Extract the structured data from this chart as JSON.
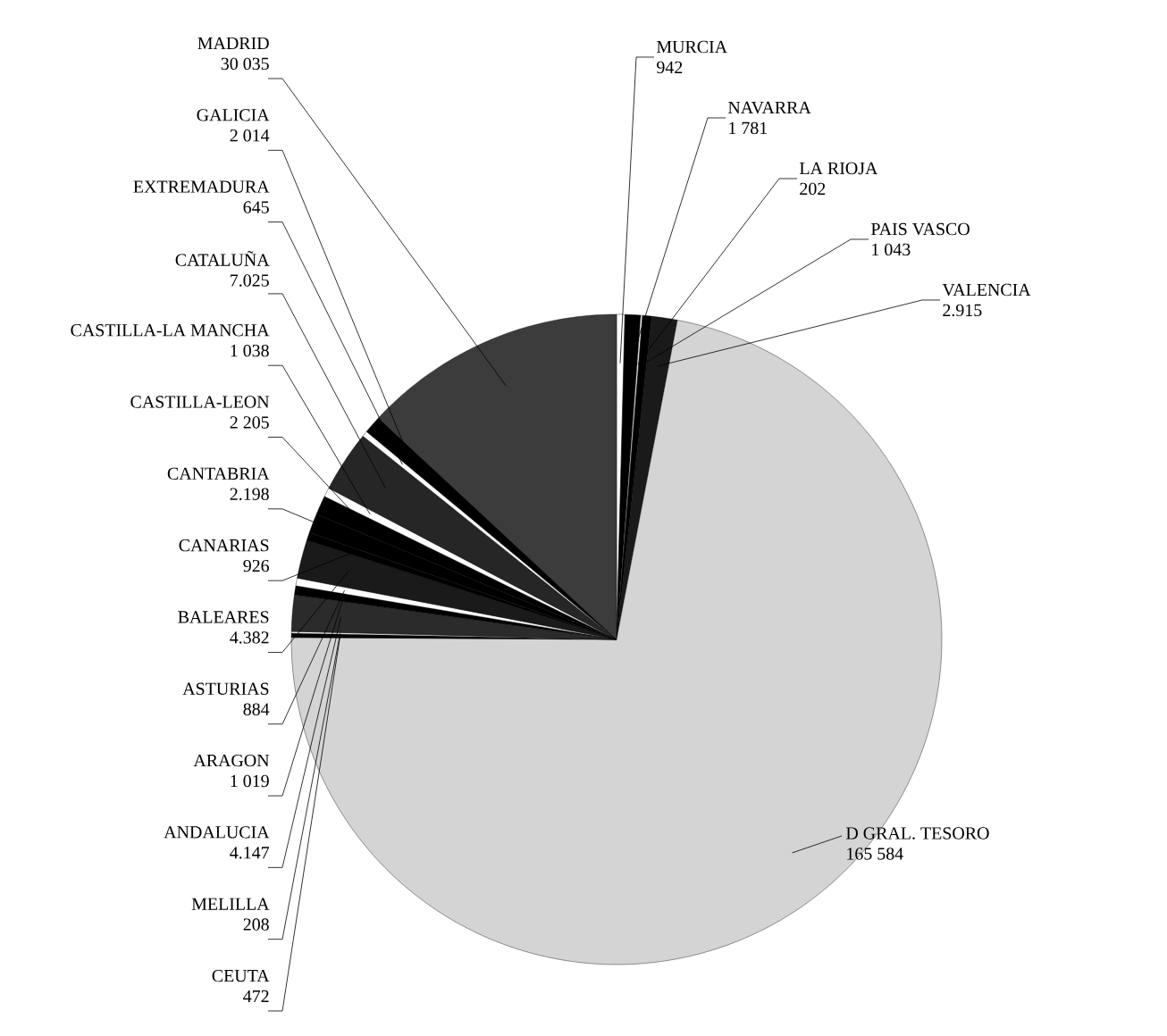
{
  "chart_data": {
    "type": "pie",
    "categories": [
      "MURCIA",
      "NAVARRA",
      "LA RIOJA",
      "PAIS VASCO",
      "VALENCIA",
      "D  GRAL. TESORO",
      "CEUTA",
      "MELILLA",
      "ANDALUCIA",
      "ARAGON",
      "ASTURIAS",
      "BALEARES",
      "CANARIAS",
      "CANTABRIA",
      "CASTILLA-LEON",
      "CASTILLA-LA MANCHA",
      "CATALUÑA",
      "EXTREMADURA",
      "GALICIA",
      "MADRID"
    ],
    "values": [
      942,
      1781,
      202,
      1043,
      2915,
      165584,
      472,
      208,
      4147,
      1019,
      884,
      4382,
      926,
      2198,
      2205,
      1038,
      7025,
      645,
      2014,
      30035
    ],
    "value_labels": [
      "942",
      "1 781",
      "202",
      "1 043",
      "2.915",
      "165 584",
      "472",
      "208",
      "4.147",
      "1 019",
      "884",
      "4.382",
      "926",
      "2.198",
      "2 205",
      "1 038",
      "7.025",
      "645",
      "2 014",
      "30 035"
    ],
    "colors": [
      "#ffffff",
      "#000000",
      "#ffffff",
      "#000000",
      "#1a1a1a",
      "#d4d4d4",
      "#000000",
      "#ffffff",
      "#2b2b2b",
      "#000000",
      "#ffffff",
      "#1a1a1a",
      "#000000",
      "#000000",
      "#000000",
      "#ffffff",
      "#262626",
      "#ffffff",
      "#000000",
      "#3c3c3c"
    ]
  }
}
